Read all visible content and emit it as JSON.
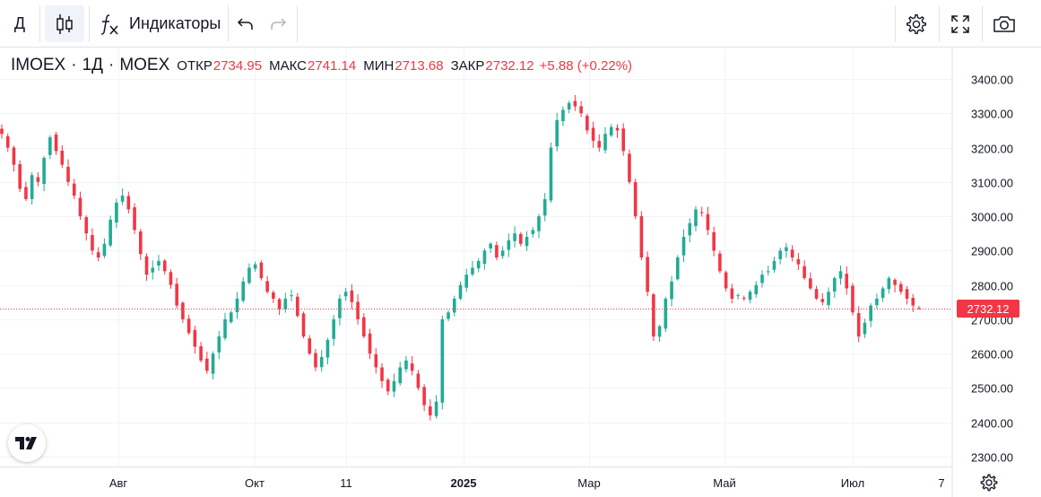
{
  "toolbar": {
    "interval_label": "Д",
    "indicators_label": "Индикаторы"
  },
  "icons": {
    "interval": "interval-dropdown",
    "chart_type": "candles-icon",
    "indicators": "fx-icon",
    "undo": "undo-icon",
    "redo": "redo-icon",
    "settings": "gear-icon",
    "fullscreen": "fullscreen-icon",
    "screenshot": "camera-icon",
    "axis_settings": "gear-icon",
    "logo": "tradingview-logo"
  },
  "legend": {
    "symbol": "IMOEX",
    "interval": "1Д",
    "exchange": "MOEX",
    "separator": "·",
    "open_label": "ОТКР",
    "open": "2734.95",
    "high_label": "МАКС",
    "high": "2741.14",
    "low_label": "МИН",
    "low": "2713.68",
    "close_label": "ЗАКР",
    "close": "2732.12",
    "change": "+5.88 (+0.22%)"
  },
  "colors": {
    "up": "#22ab94",
    "down": "#f23645",
    "grid": "#f0f3fa",
    "axis_text": "#131722",
    "border": "#e0e3eb"
  },
  "chart_data": {
    "type": "candlestick",
    "title": "IMOEX · 1Д · MOEX",
    "y_ticks": [
      "3400.00",
      "3300.00",
      "3200.00",
      "3100.00",
      "3000.00",
      "2900.00",
      "2800.00",
      "2700.00",
      "2600.00",
      "2500.00",
      "2400.00",
      "2300.00"
    ],
    "ylim": [
      2278,
      3438
    ],
    "x_ticks": [
      "Авг",
      "Окт",
      "11",
      "2025",
      "Мар",
      "Май",
      "Июл",
      "7"
    ],
    "last_price": "2732.12",
    "closes": [
      3240,
      3200,
      3150,
      3080,
      3050,
      3120,
      3100,
      3170,
      3230,
      3190,
      3150,
      3100,
      3060,
      3000,
      2950,
      2900,
      2880,
      2920,
      2990,
      3040,
      3060,
      3020,
      2960,
      2890,
      2830,
      2850,
      2870,
      2840,
      2800,
      2740,
      2700,
      2660,
      2620,
      2580,
      2550,
      2600,
      2650,
      2700,
      2720,
      2760,
      2810,
      2850,
      2860,
      2820,
      2780,
      2760,
      2730,
      2760,
      2770,
      2710,
      2650,
      2600,
      2560,
      2590,
      2640,
      2700,
      2760,
      2780,
      2750,
      2700,
      2650,
      2600,
      2560,
      2520,
      2490,
      2520,
      2560,
      2580,
      2550,
      2500,
      2450,
      2420,
      2460,
      2700,
      2720,
      2760,
      2800,
      2830,
      2850,
      2870,
      2900,
      2920,
      2880,
      2900,
      2930,
      2950,
      2920,
      2940,
      2960,
      3000,
      3050,
      3200,
      3280,
      3310,
      3330,
      3320,
      3300,
      3250,
      3220,
      3200,
      3240,
      3260,
      3250,
      3190,
      3100,
      3000,
      2880,
      2780,
      2650,
      2680,
      2760,
      2810,
      2880,
      2940,
      2980,
      3020,
      3010,
      2960,
      2900,
      2840,
      2790,
      2760,
      2770,
      2760,
      2780,
      2800,
      2830,
      2840,
      2870,
      2900,
      2910,
      2880,
      2860,
      2820,
      2790,
      2760,
      2750,
      2780,
      2820,
      2840,
      2790,
      2720,
      2650,
      2690,
      2740,
      2760,
      2790,
      2820,
      2800,
      2780,
      2760,
      2740,
      2732.12
    ]
  }
}
